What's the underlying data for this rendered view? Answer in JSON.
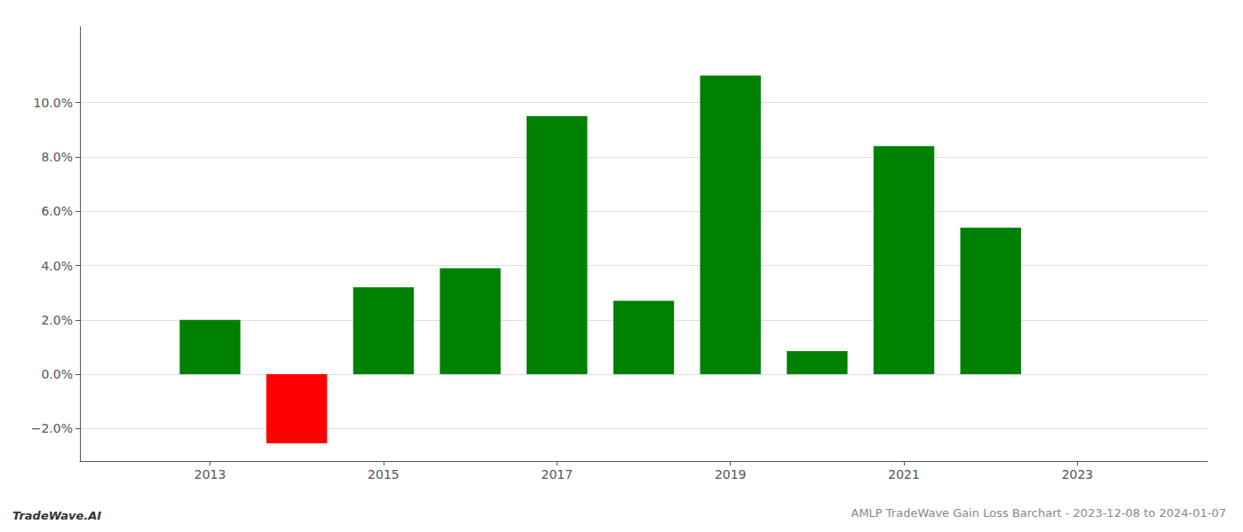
{
  "chart_data": {
    "type": "bar",
    "title": "AMLP TradeWave Gain Loss Barchart - 2023-12-08 to 2024-01-07",
    "annotations": [
      "TradeWave.AI"
    ],
    "x": [
      2013,
      2014,
      2015,
      2016,
      2017,
      2018,
      2019,
      2020,
      2021,
      2022
    ],
    "values": [
      0.02,
      -0.0255,
      0.032,
      0.039,
      0.095,
      0.027,
      0.11,
      0.0085,
      0.084,
      0.054
    ],
    "colors": [
      "#008000",
      "#ff0000",
      "#008000",
      "#008000",
      "#008000",
      "#008000",
      "#008000",
      "#008000",
      "#008000",
      "#008000"
    ],
    "xlim": [
      2011.5,
      2024.5
    ],
    "xticks": [
      2013,
      2015,
      2017,
      2019,
      2021,
      2023
    ],
    "ylim": [
      -0.032,
      0.128
    ],
    "yticks": [
      {
        "value": -0.02,
        "label": "−2.0%"
      },
      {
        "value": 0.0,
        "label": "0.0%"
      },
      {
        "value": 0.02,
        "label": "2.0%"
      },
      {
        "value": 0.04,
        "label": "4.0%"
      },
      {
        "value": 0.06,
        "label": "6.0%"
      },
      {
        "value": 0.08,
        "label": "8.0%"
      },
      {
        "value": 0.1,
        "label": "10.0%"
      }
    ],
    "grid": true
  }
}
